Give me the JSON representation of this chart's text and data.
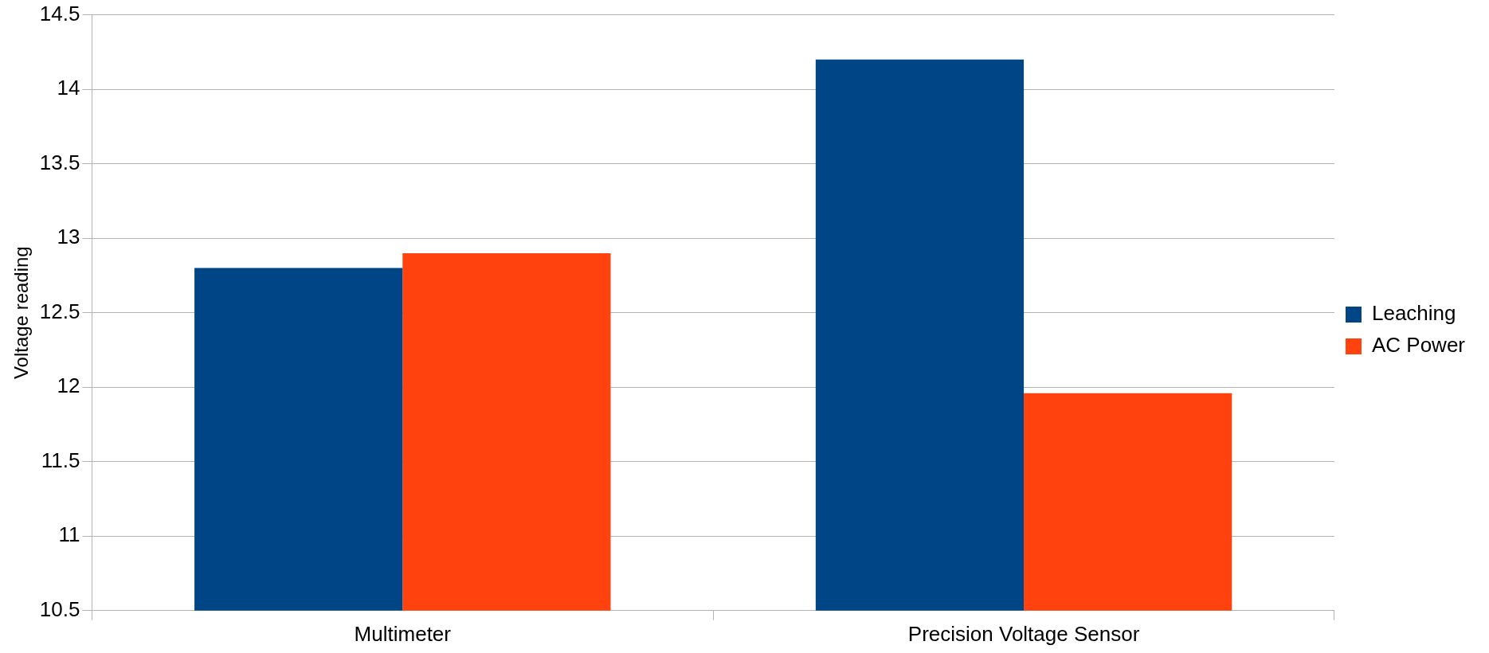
{
  "chart_data": {
    "type": "bar",
    "ylabel": "Voltage reading",
    "categories": [
      "Multimeter",
      "Precision Voltage Sensor"
    ],
    "series": [
      {
        "name": "Leaching",
        "color": "#004586",
        "values": [
          12.8,
          14.2
        ]
      },
      {
        "name": "AC Power",
        "color": "#ff420e",
        "values": [
          12.9,
          11.96
        ]
      }
    ],
    "ylim": [
      10.5,
      14.5
    ],
    "yticks": [
      10.5,
      11,
      11.5,
      12,
      12.5,
      13,
      13.5,
      14,
      14.5
    ],
    "grid": "y",
    "legend": "right"
  }
}
